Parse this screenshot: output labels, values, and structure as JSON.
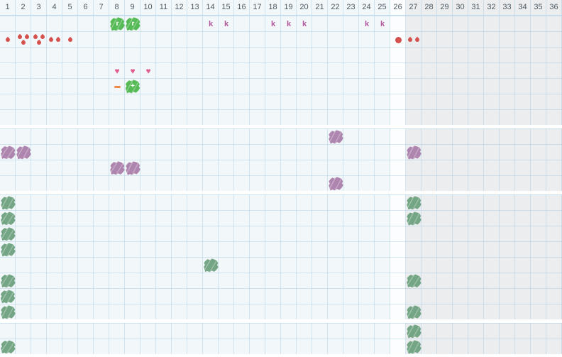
{
  "grid": {
    "weeks": 36,
    "current_week_column": 26,
    "future_start_column": 27,
    "header_labels": [
      "1",
      "2",
      "3",
      "4",
      "5",
      "6",
      "7",
      "8",
      "9",
      "10",
      "11",
      "12",
      "13",
      "14",
      "15",
      "16",
      "17",
      "18",
      "19",
      "20",
      "21",
      "22",
      "23",
      "24",
      "25",
      "26",
      "27",
      "28",
      "29",
      "30",
      "31",
      "32",
      "33",
      "34",
      "35",
      "36"
    ]
  },
  "colors": {
    "bg_normal": "#f2f7f9",
    "bg_current": "#fcfdfe",
    "bg_future": "#ecedee",
    "grid_line": "rgba(165,202,226,0.45)",
    "grid_line_strong": "rgba(150,190,218,0.55)",
    "header_text": "#4d5a63",
    "green": "#56ba56",
    "seagreen": "#74a584",
    "purple": "#ae85ae",
    "heart": "#df608c",
    "k_letter": "#b2589e",
    "drop": "#d5514e",
    "dash": "#ef8a49"
  },
  "sections": [
    {
      "name": "section-1",
      "rows": 7,
      "items": [
        {
          "row": 1,
          "col": 8,
          "type": "blob",
          "color": "green",
          "label": "r",
          "icon": "green-scribble-r-icon"
        },
        {
          "row": 1,
          "col": 9,
          "type": "blob",
          "color": "green",
          "label": "r",
          "icon": "green-scribble-r-icon"
        },
        {
          "row": 1,
          "col": 14,
          "type": "letter",
          "label": "k",
          "icon": "k-marker"
        },
        {
          "row": 1,
          "col": 15,
          "type": "letter",
          "label": "k",
          "icon": "k-marker"
        },
        {
          "row": 1,
          "col": 18,
          "type": "letter",
          "label": "k",
          "icon": "k-marker"
        },
        {
          "row": 1,
          "col": 19,
          "type": "letter",
          "label": "k",
          "icon": "k-marker"
        },
        {
          "row": 1,
          "col": 20,
          "type": "letter",
          "label": "k",
          "icon": "k-marker"
        },
        {
          "row": 1,
          "col": 24,
          "type": "letter",
          "label": "k",
          "icon": "k-marker"
        },
        {
          "row": 1,
          "col": 25,
          "type": "letter",
          "label": "k",
          "icon": "k-marker"
        },
        {
          "row": 2,
          "col": 1,
          "type": "drops",
          "count": 1,
          "icon": "droplet-icon"
        },
        {
          "row": 2,
          "col": 2,
          "type": "drops",
          "count": 3,
          "icon": "droplet-icon"
        },
        {
          "row": 2,
          "col": 3,
          "type": "drops",
          "count": 3,
          "icon": "droplet-icon"
        },
        {
          "row": 2,
          "col": 4,
          "type": "drops",
          "count": 2,
          "icon": "droplet-icon"
        },
        {
          "row": 2,
          "col": 5,
          "type": "drops",
          "count": 1,
          "icon": "droplet-icon"
        },
        {
          "row": 2,
          "col": 26,
          "type": "dot",
          "icon": "dot-icon"
        },
        {
          "row": 2,
          "col": 27,
          "type": "drops",
          "count": 2,
          "icon": "droplet-icon"
        },
        {
          "row": 4,
          "col": 8,
          "type": "heart",
          "label": "♥",
          "icon": "heart-icon"
        },
        {
          "row": 4,
          "col": 9,
          "type": "heart",
          "label": "♥",
          "icon": "heart-icon"
        },
        {
          "row": 4,
          "col": 10,
          "type": "heart",
          "label": "♥",
          "icon": "heart-icon"
        },
        {
          "row": 5,
          "col": 8,
          "type": "dash",
          "icon": "dash-icon"
        },
        {
          "row": 5,
          "col": 9,
          "type": "blob",
          "color": "green",
          "label": "+",
          "icon": "green-scribble-plus-icon"
        }
      ]
    },
    {
      "name": "section-2",
      "rows": 4,
      "items": [
        {
          "row": 1,
          "col": 22,
          "type": "blob",
          "color": "purple",
          "icon": "purple-scribble-icon"
        },
        {
          "row": 2,
          "col": 1,
          "type": "blob",
          "color": "purple",
          "icon": "purple-scribble-icon"
        },
        {
          "row": 2,
          "col": 2,
          "type": "blob",
          "color": "purple",
          "icon": "purple-scribble-icon"
        },
        {
          "row": 2,
          "col": 27,
          "type": "blob",
          "color": "purple",
          "icon": "purple-scribble-icon"
        },
        {
          "row": 3,
          "col": 8,
          "type": "blob",
          "color": "purple",
          "icon": "purple-scribble-icon"
        },
        {
          "row": 3,
          "col": 9,
          "type": "blob",
          "color": "purple",
          "icon": "purple-scribble-icon"
        },
        {
          "row": 4,
          "col": 22,
          "type": "blob",
          "color": "purple",
          "icon": "purple-scribble-icon"
        }
      ]
    },
    {
      "name": "section-3",
      "rows": 8,
      "items": [
        {
          "row": 1,
          "col": 1,
          "type": "blob",
          "color": "seagreen",
          "icon": "seagreen-scribble-icon"
        },
        {
          "row": 2,
          "col": 1,
          "type": "blob",
          "color": "seagreen",
          "icon": "seagreen-scribble-icon"
        },
        {
          "row": 3,
          "col": 1,
          "type": "blob",
          "color": "seagreen",
          "icon": "seagreen-scribble-icon"
        },
        {
          "row": 4,
          "col": 1,
          "type": "blob",
          "color": "seagreen",
          "icon": "seagreen-scribble-icon"
        },
        {
          "row": 6,
          "col": 1,
          "type": "blob",
          "color": "seagreen",
          "icon": "seagreen-scribble-icon"
        },
        {
          "row": 7,
          "col": 1,
          "type": "blob",
          "color": "seagreen",
          "icon": "seagreen-scribble-icon"
        },
        {
          "row": 8,
          "col": 1,
          "type": "blob",
          "color": "seagreen",
          "icon": "seagreen-scribble-icon"
        },
        {
          "row": 5,
          "col": 14,
          "type": "blob",
          "color": "seagreen",
          "icon": "seagreen-scribble-icon"
        },
        {
          "row": 1,
          "col": 27,
          "type": "blob",
          "color": "seagreen",
          "icon": "seagreen-scribble-icon"
        },
        {
          "row": 2,
          "col": 27,
          "type": "blob",
          "color": "seagreen",
          "icon": "seagreen-scribble-icon"
        },
        {
          "row": 6,
          "col": 27,
          "type": "blob",
          "color": "seagreen",
          "icon": "seagreen-scribble-icon"
        },
        {
          "row": 8,
          "col": 27,
          "type": "blob",
          "color": "seagreen",
          "icon": "seagreen-scribble-icon"
        }
      ]
    },
    {
      "name": "section-4",
      "rows": 2,
      "items": [
        {
          "row": 1,
          "col": 27,
          "type": "blob",
          "color": "seagreen",
          "icon": "seagreen-scribble-icon"
        },
        {
          "row": 2,
          "col": 1,
          "type": "blob",
          "color": "seagreen",
          "icon": "seagreen-scribble-icon"
        },
        {
          "row": 2,
          "col": 27,
          "type": "blob",
          "color": "seagreen",
          "icon": "seagreen-scribble-icon"
        }
      ]
    }
  ]
}
